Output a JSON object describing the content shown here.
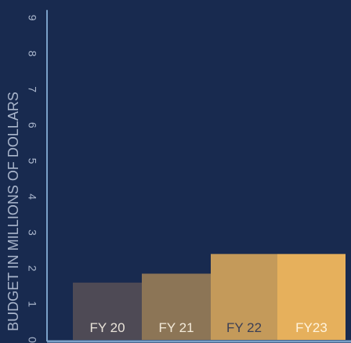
{
  "colors": {
    "background": "#182a4f",
    "axis": "#7aa0c8",
    "text": "#aab6cc",
    "bar_colors": [
      "#4e4a55",
      "#8c7556",
      "#c49a5a",
      "#e6b05c"
    ],
    "label_colors": [
      "#e8e2d8",
      "#f3ead9",
      "#3b3f55",
      "#fff4de"
    ]
  },
  "chart_data": {
    "type": "bar",
    "categories": [
      "FY 20",
      "FY 21",
      "FY 22",
      "FY23"
    ],
    "values": [
      1.6,
      1.85,
      2.4,
      2.4
    ],
    "ylabel": "BUDGET IN MILLIONS OF DOLLARS",
    "ylim": [
      0,
      9
    ],
    "yticks": [
      "0",
      "1",
      "2",
      "3",
      "4",
      "5",
      "6",
      "7",
      "8",
      "9"
    ],
    "grid": false,
    "y_tick_labels_rotated": true
  }
}
